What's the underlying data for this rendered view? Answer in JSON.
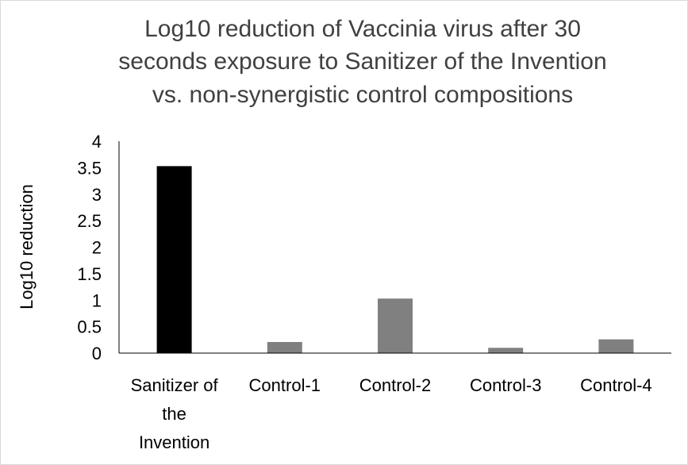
{
  "chart_data": {
    "type": "bar",
    "title_lines": [
      "Log10 reduction of Vaccinia virus after 30",
      "seconds exposure to Sanitizer of the Invention",
      "vs. non-synergistic control compositions"
    ],
    "xlabel": "",
    "ylabel": "Log10 reduction",
    "categories": [
      [
        "Sanitizer of",
        "the",
        "Invention"
      ],
      [
        "Control-1"
      ],
      [
        "Control-2"
      ],
      [
        "Control-3"
      ],
      [
        "Control-4"
      ]
    ],
    "values": [
      3.53,
      0.21,
      1.03,
      0.1,
      0.26
    ],
    "bar_colors": [
      "#000000",
      "#808080",
      "#808080",
      "#808080",
      "#808080"
    ],
    "ylim": [
      0,
      4
    ],
    "yticks": [
      "0",
      "0.5",
      "1",
      "1.5",
      "2",
      "2.5",
      "3",
      "3.5",
      "4"
    ],
    "grid": false,
    "legend": "none"
  }
}
